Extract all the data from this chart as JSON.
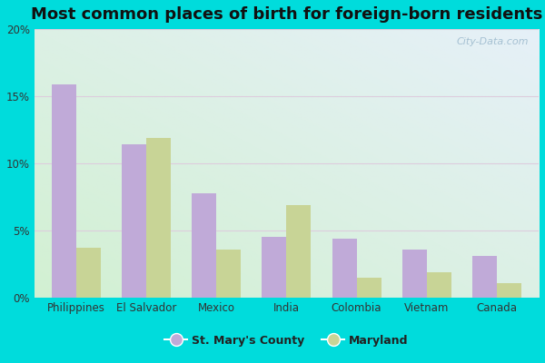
{
  "title": "Most common places of birth for foreign-born residents",
  "categories": [
    "Philippines",
    "El Salvador",
    "Mexico",
    "India",
    "Colombia",
    "Vietnam",
    "Canada"
  ],
  "county_values": [
    15.9,
    11.4,
    7.8,
    4.5,
    4.4,
    3.6,
    3.1
  ],
  "state_values": [
    3.7,
    11.9,
    3.6,
    6.9,
    1.5,
    1.9,
    1.1
  ],
  "county_color": "#c0aad8",
  "state_color": "#c8d496",
  "county_label": "St. Mary's County",
  "state_label": "Maryland",
  "ylim": [
    0,
    20
  ],
  "yticks": [
    0,
    5,
    10,
    15,
    20
  ],
  "ytick_labels": [
    "0%",
    "5%",
    "10%",
    "15%",
    "20%"
  ],
  "background_color": "#00dcdc",
  "title_fontsize": 13,
  "bar_width": 0.35,
  "watermark": "City-Data.com",
  "grid_color": "#ddccdd",
  "tick_label_color": "#333333"
}
